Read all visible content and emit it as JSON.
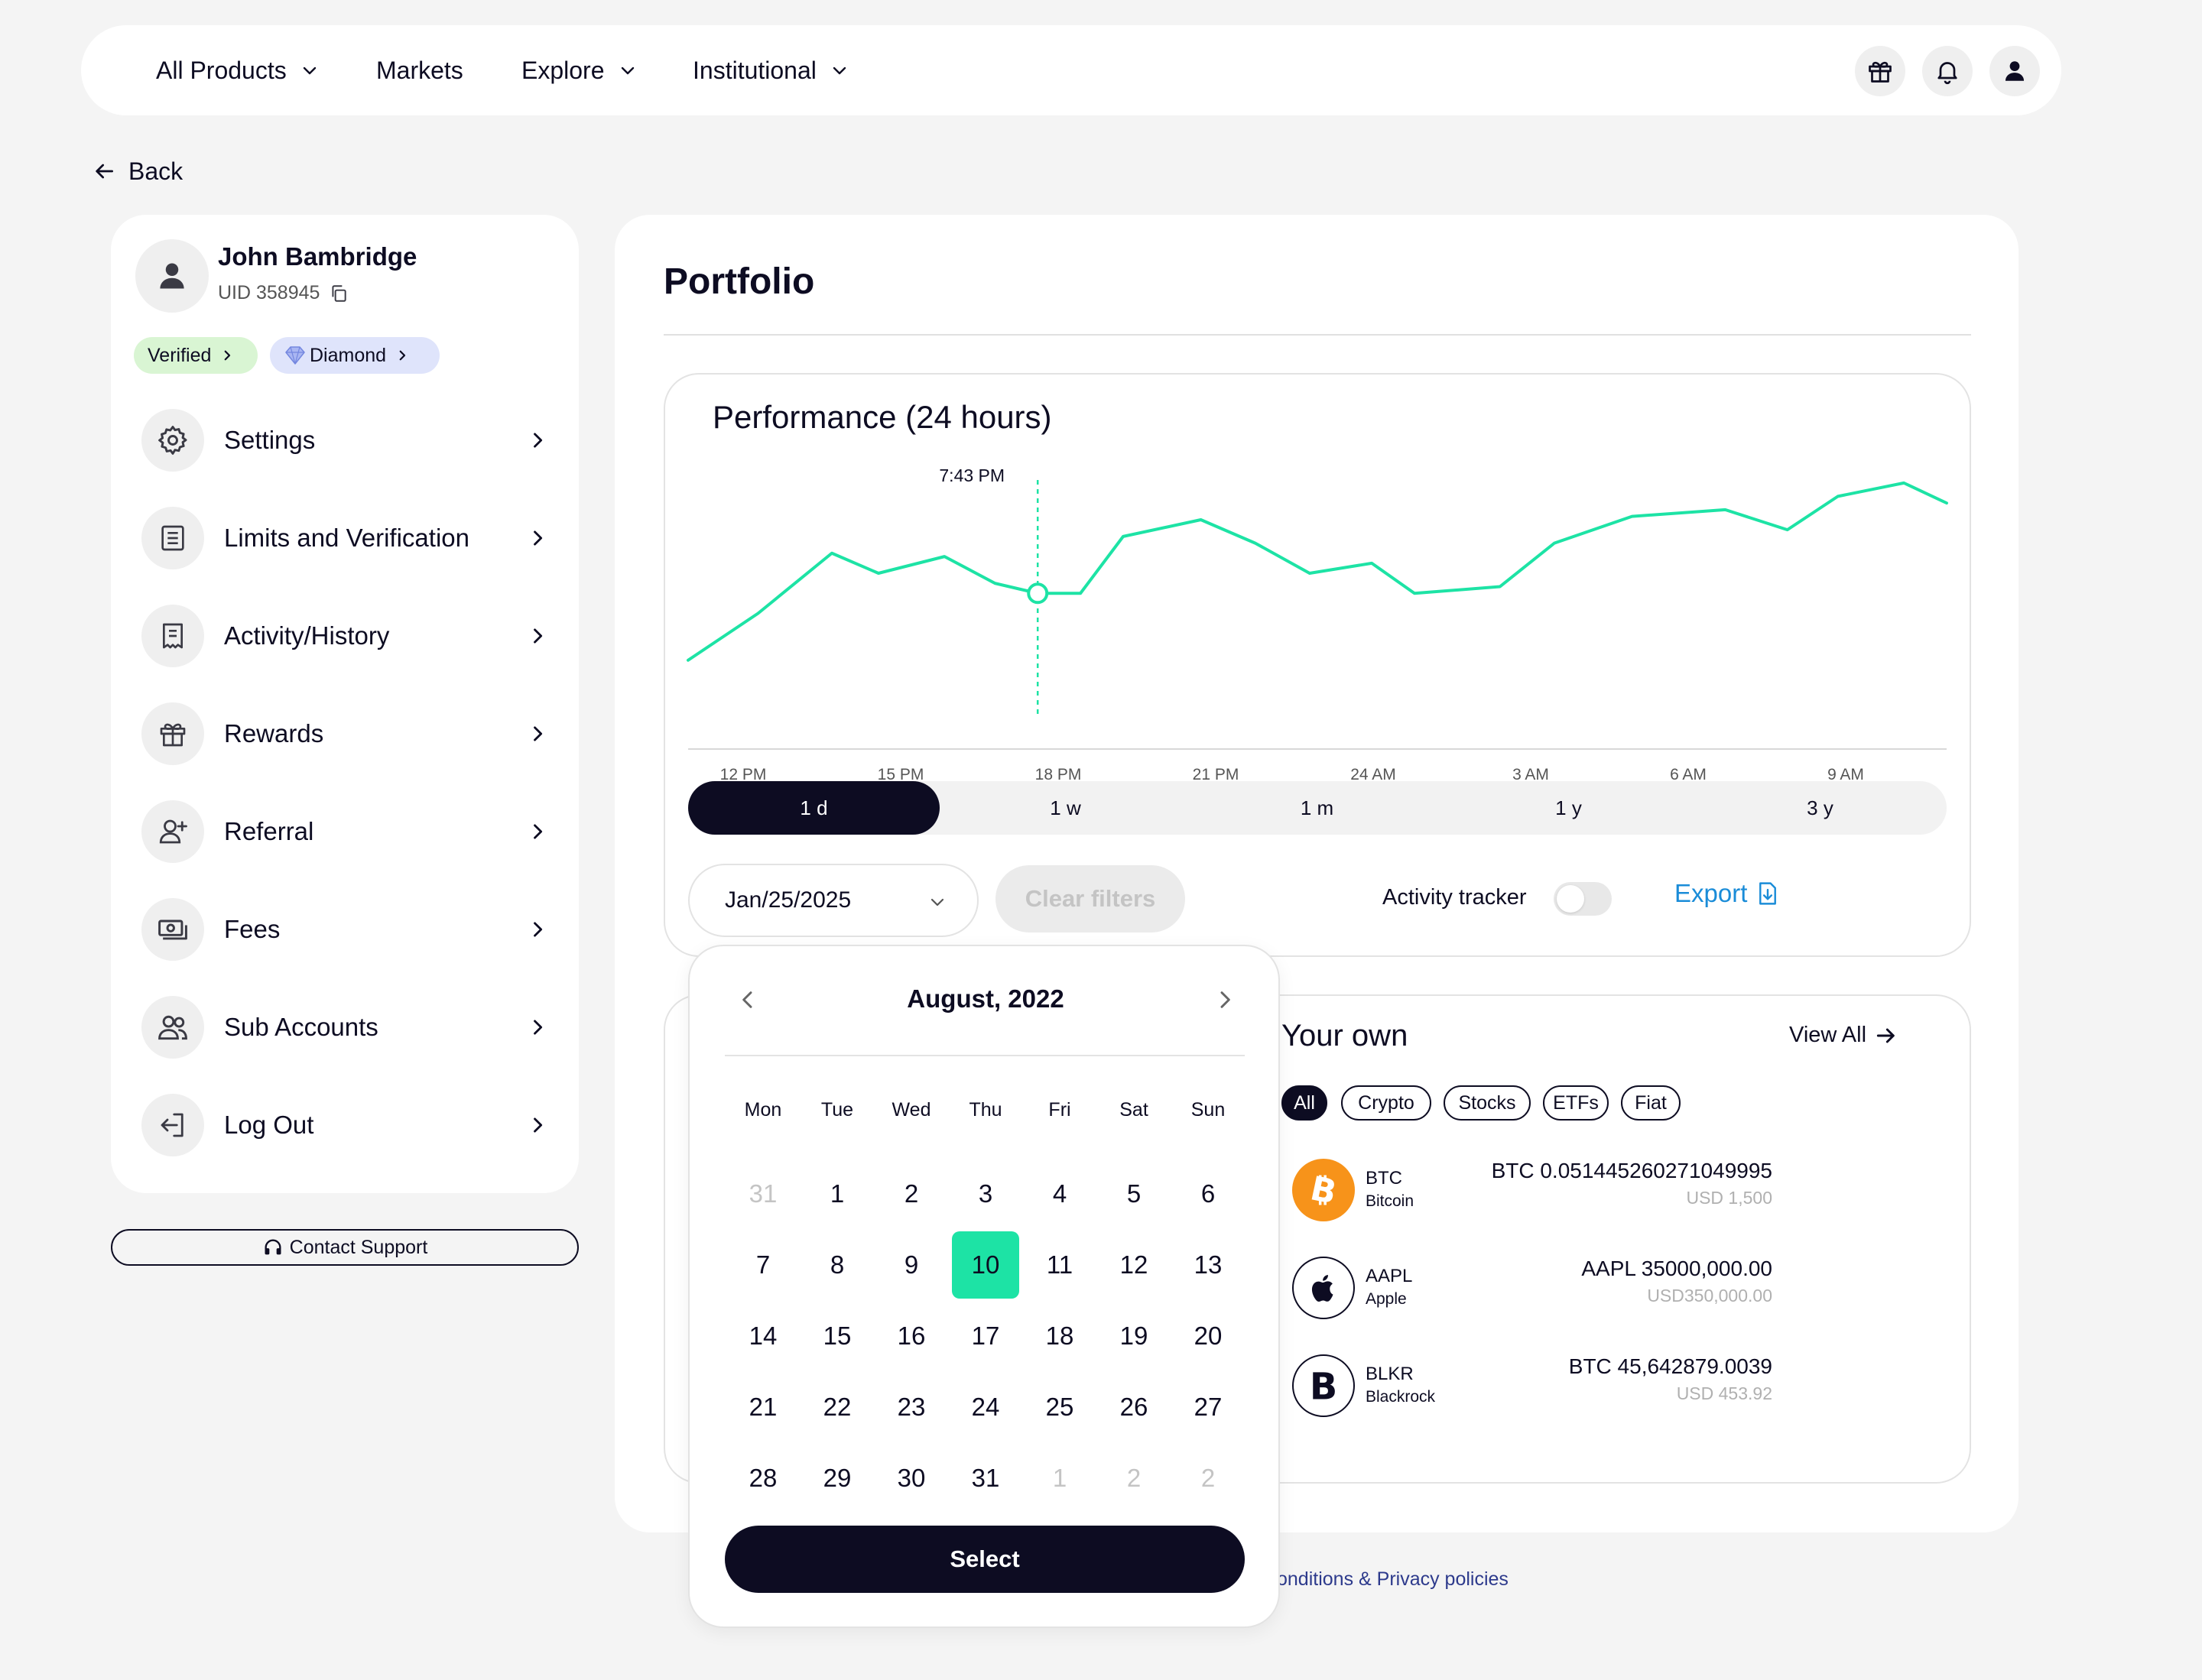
{
  "nav": {
    "items": [
      {
        "label": "All Products",
        "has_dropdown": true
      },
      {
        "label": "Markets",
        "has_dropdown": false
      },
      {
        "label": "Explore",
        "has_dropdown": true
      },
      {
        "label": "Institutional",
        "has_dropdown": true
      }
    ],
    "icons": [
      "gift-icon",
      "bell-icon",
      "user-icon"
    ]
  },
  "back_label": "Back",
  "profile": {
    "name": "John Bambridge",
    "uid": "UID 358945",
    "badges": [
      {
        "label": "Verified",
        "color": "#d9f5d3"
      },
      {
        "label": "Diamond",
        "color": "#dfe4fb"
      }
    ]
  },
  "sidebar": {
    "items": [
      {
        "label": "Settings",
        "icon": "gear-icon"
      },
      {
        "label": "Limits and Verification",
        "icon": "document-list-icon"
      },
      {
        "label": "Activity/History",
        "icon": "receipt-icon"
      },
      {
        "label": "Rewards",
        "icon": "gift-icon"
      },
      {
        "label": "Referral",
        "icon": "add-user-icon"
      },
      {
        "label": "Fees",
        "icon": "money-icon"
      },
      {
        "label": "Sub Accounts",
        "icon": "users-icon"
      },
      {
        "label": "Log Out",
        "icon": "logout-icon"
      }
    ]
  },
  "contact_support": "Contact Support",
  "portfolio": {
    "title": "Portfolio",
    "performance": {
      "title": "Performance (24 hours)",
      "ranges": [
        {
          "label": "1 d",
          "active": true
        },
        {
          "label": "1 w",
          "active": false
        },
        {
          "label": "1 m",
          "active": false
        },
        {
          "label": "1 y",
          "active": false
        },
        {
          "label": "3 y",
          "active": false
        }
      ],
      "date_value": "Jan/25/2025",
      "clear_filters": "Clear filters",
      "activity_tracker": "Activity tracker",
      "activity_tracker_on": false,
      "export_label": "Export"
    },
    "holdings": {
      "title": "Your own",
      "view_all": "View All",
      "filters": [
        {
          "label": "All",
          "active": true
        },
        {
          "label": "Crypto",
          "active": false
        },
        {
          "label": "Stocks",
          "active": false
        },
        {
          "label": "ETFs",
          "active": false
        },
        {
          "label": "Fiat",
          "active": false
        }
      ],
      "assets": [
        {
          "symbol": "BTC",
          "name": "Bitcoin",
          "amount": "BTC 0.051445260271049995",
          "usd": "USD  1,500",
          "logo": "bitcoin-icon",
          "color": "#f7931a"
        },
        {
          "symbol": "AAPL",
          "name": "Apple",
          "amount": "AAPL 35000,000.00",
          "usd": "USD350,000.00",
          "logo": "apple-icon",
          "color": "#ffffff"
        },
        {
          "symbol": "BLKR",
          "name": "Blackrock",
          "amount": "BTC 45,642879.0039",
          "usd": "USD 453.92",
          "logo": "blackrock-icon",
          "color": "#ffffff"
        }
      ]
    }
  },
  "footer_link": "onditions & Privacy policies",
  "calendar": {
    "month": "August, 2022",
    "weekdays": [
      "Mon",
      "Tue",
      "Wed",
      "Thu",
      "Fri",
      "Sat",
      "Sun"
    ],
    "weeks": [
      [
        {
          "d": "31",
          "m": true
        },
        {
          "d": "1"
        },
        {
          "d": "2"
        },
        {
          "d": "3"
        },
        {
          "d": "4"
        },
        {
          "d": "5"
        },
        {
          "d": "6"
        }
      ],
      [
        {
          "d": "7"
        },
        {
          "d": "8"
        },
        {
          "d": "9"
        },
        {
          "d": "10",
          "s": true
        },
        {
          "d": "11"
        },
        {
          "d": "12"
        },
        {
          "d": "13"
        }
      ],
      [
        {
          "d": "14"
        },
        {
          "d": "15"
        },
        {
          "d": "16"
        },
        {
          "d": "17"
        },
        {
          "d": "18"
        },
        {
          "d": "19"
        },
        {
          "d": "20"
        }
      ],
      [
        {
          "d": "21"
        },
        {
          "d": "22"
        },
        {
          "d": "23"
        },
        {
          "d": "24"
        },
        {
          "d": "25"
        },
        {
          "d": "26"
        },
        {
          "d": "27"
        }
      ],
      [
        {
          "d": "28"
        },
        {
          "d": "29"
        },
        {
          "d": "30"
        },
        {
          "d": "31"
        },
        {
          "d": "1",
          "m": true
        },
        {
          "d": "2",
          "m": true
        },
        {
          "d": "2",
          "m": true
        }
      ]
    ],
    "select_label": "Select",
    "accent": "#1de3a5"
  },
  "chart_data": {
    "type": "line",
    "title": "Performance (24 hours)",
    "x_ticks": [
      "12 PM",
      "15 PM",
      "18 PM",
      "21 PM",
      "24 AM",
      "3 AM",
      "6 AM",
      "9 AM"
    ],
    "series": [
      {
        "values": [
          22,
          36,
          54,
          48,
          53,
          45,
          42,
          42,
          59,
          64,
          57,
          48,
          51,
          42,
          44,
          57,
          65,
          67,
          61,
          71,
          75,
          69
        ]
      }
    ],
    "x": [
      0,
      0.9,
      1.85,
      2.45,
      3.3,
      3.95,
      4.5,
      5.05,
      5.6,
      6.6,
      7.3,
      8.0,
      8.8,
      9.35,
      10.45,
      11.15,
      12.15,
      13.35,
      14.15,
      14.8,
      15.65,
      16.2
    ],
    "cursor_index": 6,
    "cursor_label": "7:43 PM",
    "xlim": [
      0,
      16.2
    ],
    "ylim": [
      0,
      80
    ],
    "line_color": "#1de3a5",
    "grid": false
  }
}
